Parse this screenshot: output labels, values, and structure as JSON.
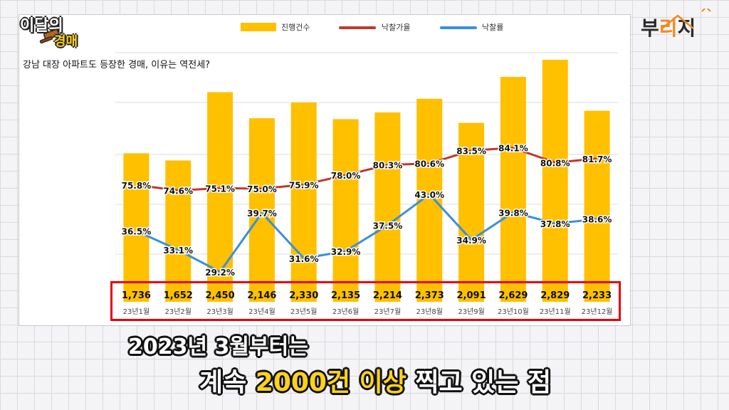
{
  "logo": {
    "line1": "이달의",
    "line2": "경매"
  },
  "brand": {
    "part1": "부",
    "part2": "리",
    "part3": "지"
  },
  "subtitle": "강남 대장 아파트도 등장한 경매, 이유는 역전세?",
  "caption": {
    "line1": "2023년 3월부터는",
    "line2_pre": "계속 ",
    "line2_highlight": "2000건 이상",
    "line2_post": " 찍고 있는 점"
  },
  "colors": {
    "bar": "#ffc000",
    "rate_line": "#c0392b",
    "ratio_line": "#3a8fdd",
    "highlight_box": "#e8000b"
  },
  "chart_data": {
    "type": "bar",
    "categories": [
      "23년1월",
      "23년2월",
      "23년3월",
      "23년4월",
      "23년5월",
      "23년6월",
      "23년7월",
      "23년8월",
      "23년9월",
      "23년10월",
      "23년11월",
      "23년12월"
    ],
    "series": [
      {
        "name": "진행건수",
        "type": "bar",
        "values": [
          1736,
          1652,
          2450,
          2146,
          2330,
          2135,
          2214,
          2373,
          2091,
          2629,
          2829,
          2233
        ],
        "labels": [
          "1,736",
          "1,652",
          "2,450",
          "2,146",
          "2,330",
          "2,135",
          "2,214",
          "2,373",
          "2,091",
          "2,629",
          "2,829",
          "2,233"
        ]
      },
      {
        "name": "낙찰가율",
        "type": "line",
        "values": [
          75.8,
          74.6,
          75.1,
          75.0,
          75.9,
          78.0,
          80.3,
          80.6,
          83.5,
          84.1,
          80.8,
          81.7
        ],
        "labels": [
          "75.8%",
          "74.6%",
          "75.1%",
          "75.0%",
          "75.9%",
          "78.0%",
          "80.3%",
          "80.6%",
          "83.5%",
          "84.1%",
          "80.8%",
          "81.7%"
        ]
      },
      {
        "name": "낙찰률",
        "type": "line",
        "values": [
          36.5,
          33.1,
          29.2,
          39.7,
          31.6,
          32.9,
          37.5,
          43.0,
          34.9,
          39.8,
          37.8,
          38.6
        ],
        "labels": [
          "36.5%",
          "33.1%",
          "29.2%",
          "39.7%",
          "31.6%",
          "32.9%",
          "37.5%",
          "43.0%",
          "34.9%",
          "39.8%",
          "37.8%",
          "38.6%"
        ]
      }
    ],
    "legend": [
      "진행건수",
      "낙찰가율",
      "낙찰률"
    ],
    "grid": true
  }
}
